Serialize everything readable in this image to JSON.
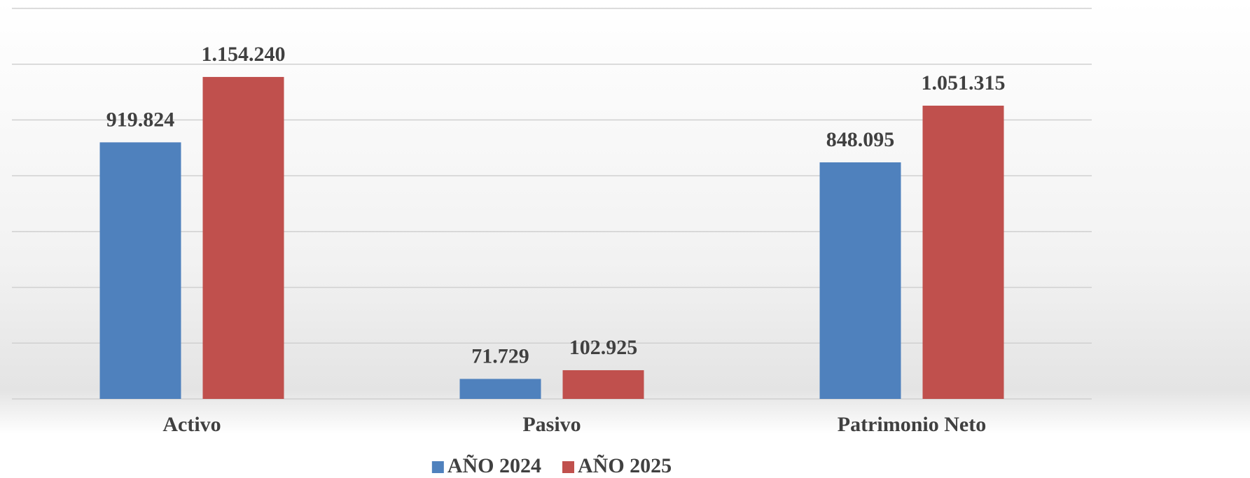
{
  "chart_data": {
    "type": "bar",
    "categories": [
      "Activo",
      "Pasivo",
      "Patrimonio Neto"
    ],
    "series": [
      {
        "name": "AÑO 2024",
        "color": "#4f81bd",
        "values": [
          919824,
          71729,
          848095
        ],
        "value_labels": [
          "919.824",
          "71.729",
          "848.095"
        ]
      },
      {
        "name": "AÑO 2025",
        "color": "#c0504d",
        "values": [
          1154240,
          102925,
          1051315
        ],
        "value_labels": [
          "1.154.240",
          "102.925",
          "1.051.315"
        ]
      }
    ],
    "ylim": [
      0,
      1400000
    ],
    "yticks": [
      0,
      200000,
      400000,
      600000,
      800000,
      1000000,
      1200000,
      1400000
    ],
    "grid": true,
    "legend": "bottom"
  }
}
